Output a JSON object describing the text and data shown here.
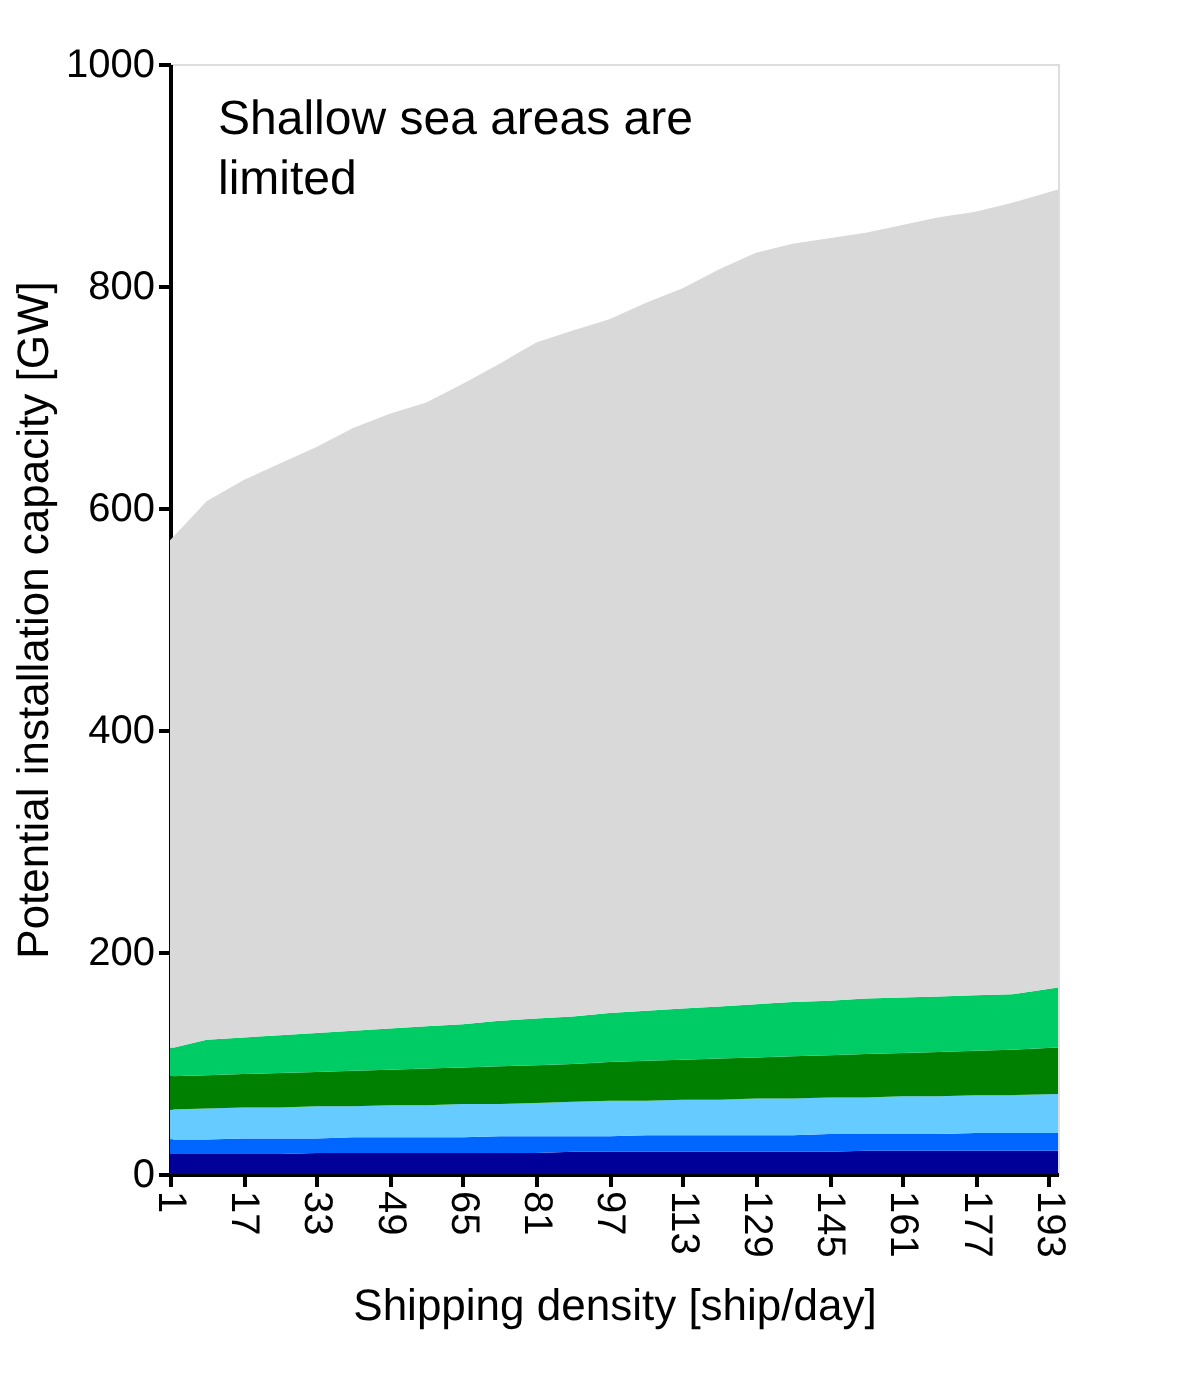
{
  "chart_data": {
    "type": "area",
    "stacked": true,
    "xlabel": "Shipping density [ship/day]",
    "ylabel": "Potential installation capacity [GW]",
    "annotations": [
      "Shallow sea areas are limited"
    ],
    "x": [
      1,
      9,
      17,
      25,
      33,
      41,
      49,
      57,
      65,
      73,
      81,
      89,
      97,
      105,
      113,
      121,
      129,
      137,
      145,
      153,
      161,
      169,
      177,
      185,
      195
    ],
    "xlim": [
      1,
      195
    ],
    "xticks": [
      1,
      17,
      33,
      49,
      65,
      81,
      97,
      113,
      129,
      145,
      161,
      177,
      193
    ],
    "ylim": [
      0,
      1000
    ],
    "yticks": [
      0,
      200,
      400,
      600,
      800,
      1000
    ],
    "grid": false,
    "legend": false,
    "series": [
      {
        "color": "#000099",
        "values": [
          18,
          18,
          18,
          18,
          19,
          19,
          19,
          19,
          19,
          19,
          19,
          20,
          20,
          20,
          20,
          20,
          20,
          20,
          20,
          21,
          21,
          21,
          21,
          21,
          21
        ]
      },
      {
        "color": "#0066ff",
        "values": [
          13,
          13,
          14,
          14,
          13,
          14,
          14,
          14,
          14,
          15,
          15,
          14,
          14,
          15,
          15,
          15,
          15,
          15,
          16,
          15,
          15,
          15,
          16,
          16,
          16
        ]
      },
      {
        "color": "#66ccff",
        "values": [
          27,
          28,
          28,
          28,
          29,
          28,
          29,
          29,
          30,
          29,
          30,
          31,
          32,
          31,
          32,
          32,
          33,
          33,
          33,
          33,
          34,
          34,
          34,
          34,
          35
        ]
      },
      {
        "color": "#008000",
        "values": [
          30,
          30,
          30,
          31,
          31,
          32,
          32,
          33,
          33,
          34,
          34,
          34,
          35,
          36,
          36,
          37,
          37,
          38,
          38,
          39,
          39,
          40,
          40,
          41,
          42
        ]
      },
      {
        "color": "#00cc66",
        "values": [
          25,
          32,
          33,
          34,
          35,
          36,
          37,
          38,
          39,
          41,
          42,
          43,
          44,
          45,
          46,
          47,
          48,
          49,
          49,
          50,
          50,
          50,
          50,
          50,
          54
        ]
      },
      {
        "color": "#d9d9d9",
        "values": [
          458,
          485,
          502,
          515,
          528,
          543,
          554,
          562,
          577,
          592,
          609,
          618,
          625,
          638,
          649,
          664,
          677,
          683,
          687,
          690,
          696,
          702,
          706,
          713,
          719
        ]
      }
    ]
  }
}
